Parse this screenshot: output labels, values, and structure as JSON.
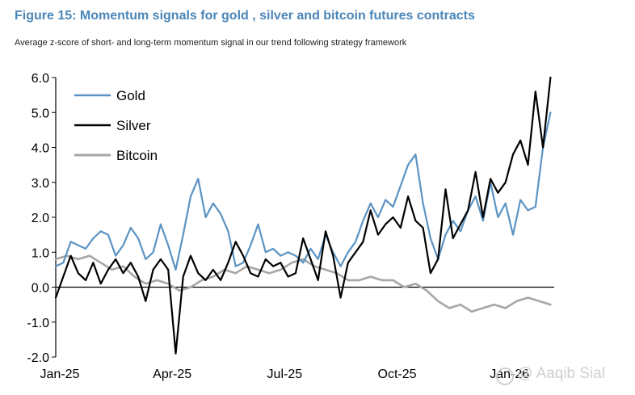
{
  "header": {
    "title": "Figure 15: Momentum signals for gold , silver and bitcoin futures contracts",
    "subtitle": "Average z-score of short- and long-term momentum signal in our trend following strategy framework"
  },
  "watermark": {
    "text": "@ Aaqib Sial",
    "icon": "camera-icon"
  },
  "colors": {
    "gold": "#5b93c3",
    "silver": "#000000",
    "bitcoin": "#a6a6a6",
    "title": "#4a86b8"
  },
  "chart_data": {
    "type": "line",
    "title": "Figure 15: Momentum signals for gold , silver and bitcoin futures contracts",
    "subtitle": "Average z-score of short- and long-term momentum signal in our trend following strategy framework",
    "xlabel": "",
    "ylabel": "",
    "ylim": [
      -2.0,
      6.0
    ],
    "xlim": [
      0,
      13.3
    ],
    "x_unit": "months since Jan-25",
    "y_ticks": [
      "6.0",
      "5.0",
      "4.0",
      "3.0",
      "2.0",
      "1.0",
      "0.0",
      "-1.0",
      "-2.0"
    ],
    "y_tick_values": [
      6,
      5,
      4,
      3,
      2,
      1,
      0,
      -1,
      -2
    ],
    "x_ticks": [
      "Jan-25",
      "Apr-25",
      "Jul-25",
      "Oct-25",
      "Jan-26"
    ],
    "x_tick_values": [
      0,
      3,
      6,
      9,
      12
    ],
    "grid": false,
    "legend": "top-left",
    "series": [
      {
        "name": "Gold",
        "x": [
          0.0,
          0.2,
          0.4,
          0.6,
          0.8,
          1.0,
          1.2,
          1.4,
          1.6,
          1.8,
          2.0,
          2.2,
          2.4,
          2.6,
          2.8,
          3.0,
          3.2,
          3.4,
          3.6,
          3.8,
          4.0,
          4.2,
          4.4,
          4.6,
          4.8,
          5.0,
          5.2,
          5.4,
          5.6,
          5.8,
          6.0,
          6.2,
          6.4,
          6.6,
          6.8,
          7.0,
          7.2,
          7.4,
          7.6,
          7.8,
          8.0,
          8.2,
          8.4,
          8.6,
          8.8,
          9.0,
          9.2,
          9.4,
          9.6,
          9.8,
          10.0,
          10.2,
          10.4,
          10.6,
          10.8,
          11.0,
          11.2,
          11.4,
          11.6,
          11.8,
          12.0,
          12.2,
          12.4,
          12.6,
          12.8,
          13.0,
          13.2
        ],
        "values": [
          0.6,
          0.7,
          1.3,
          1.2,
          1.1,
          1.4,
          1.6,
          1.5,
          0.9,
          1.2,
          1.7,
          1.4,
          0.8,
          1.0,
          1.8,
          1.2,
          0.5,
          1.5,
          2.6,
          3.1,
          2.0,
          2.4,
          2.1,
          1.6,
          0.6,
          0.7,
          1.2,
          1.8,
          1.0,
          1.1,
          0.9,
          1.0,
          0.9,
          0.7,
          1.1,
          0.8,
          1.5,
          1.0,
          0.6,
          1.0,
          1.3,
          1.9,
          2.4,
          2.0,
          2.5,
          2.3,
          2.9,
          3.5,
          3.8,
          2.4,
          1.4,
          0.8,
          1.5,
          1.9,
          1.6,
          2.2,
          2.6,
          1.9,
          3.0,
          2.0,
          2.4,
          1.5,
          2.5,
          2.2,
          2.3,
          4.0,
          5.0
        ]
      },
      {
        "name": "Silver",
        "x": [
          0.0,
          0.2,
          0.4,
          0.6,
          0.8,
          1.0,
          1.2,
          1.4,
          1.6,
          1.8,
          2.0,
          2.2,
          2.4,
          2.6,
          2.8,
          3.0,
          3.2,
          3.4,
          3.6,
          3.8,
          4.0,
          4.2,
          4.4,
          4.6,
          4.8,
          5.0,
          5.2,
          5.4,
          5.6,
          5.8,
          6.0,
          6.2,
          6.4,
          6.6,
          6.8,
          7.0,
          7.2,
          7.4,
          7.6,
          7.8,
          8.0,
          8.2,
          8.4,
          8.6,
          8.8,
          9.0,
          9.2,
          9.4,
          9.6,
          9.8,
          10.0,
          10.2,
          10.4,
          10.6,
          10.8,
          11.0,
          11.2,
          11.4,
          11.6,
          11.8,
          12.0,
          12.2,
          12.4,
          12.6,
          12.8,
          13.0,
          13.2
        ],
        "values": [
          -0.3,
          0.3,
          0.9,
          0.4,
          0.2,
          0.7,
          0.1,
          0.5,
          0.8,
          0.4,
          0.7,
          0.3,
          -0.4,
          0.5,
          0.8,
          0.5,
          -1.9,
          0.3,
          0.9,
          0.4,
          0.2,
          0.5,
          0.2,
          0.7,
          1.3,
          0.9,
          0.4,
          0.3,
          0.8,
          0.6,
          0.7,
          0.3,
          0.4,
          1.4,
          0.8,
          0.2,
          1.6,
          0.9,
          -0.3,
          0.7,
          1.0,
          1.3,
          2.2,
          1.5,
          1.8,
          2.0,
          1.7,
          2.6,
          1.9,
          1.7,
          0.4,
          0.8,
          2.8,
          1.4,
          1.8,
          2.2,
          3.3,
          2.0,
          3.1,
          2.7,
          3.0,
          3.8,
          4.2,
          3.5,
          5.6,
          4.0,
          6.0
        ]
      },
      {
        "name": "Bitcoin",
        "x": [
          0.0,
          0.3,
          0.6,
          0.9,
          1.2,
          1.5,
          1.8,
          2.1,
          2.4,
          2.7,
          3.0,
          3.3,
          3.6,
          3.9,
          4.2,
          4.5,
          4.8,
          5.1,
          5.4,
          5.7,
          6.0,
          6.3,
          6.6,
          6.9,
          7.2,
          7.5,
          7.8,
          8.1,
          8.4,
          8.7,
          9.0,
          9.3,
          9.6,
          9.9,
          10.2,
          10.5,
          10.8,
          11.1,
          11.4,
          11.7,
          12.0,
          12.3,
          12.6,
          12.9,
          13.2
        ],
        "values": [
          0.8,
          0.9,
          0.8,
          0.9,
          0.7,
          0.5,
          0.6,
          0.3,
          0.1,
          0.2,
          0.1,
          -0.1,
          0.0,
          0.2,
          0.3,
          0.5,
          0.4,
          0.6,
          0.5,
          0.4,
          0.5,
          0.7,
          0.8,
          0.6,
          0.5,
          0.4,
          0.2,
          0.2,
          0.3,
          0.2,
          0.2,
          0.0,
          0.1,
          -0.1,
          -0.4,
          -0.6,
          -0.5,
          -0.7,
          -0.6,
          -0.5,
          -0.6,
          -0.4,
          -0.3,
          -0.4,
          -0.5
        ]
      }
    ]
  }
}
